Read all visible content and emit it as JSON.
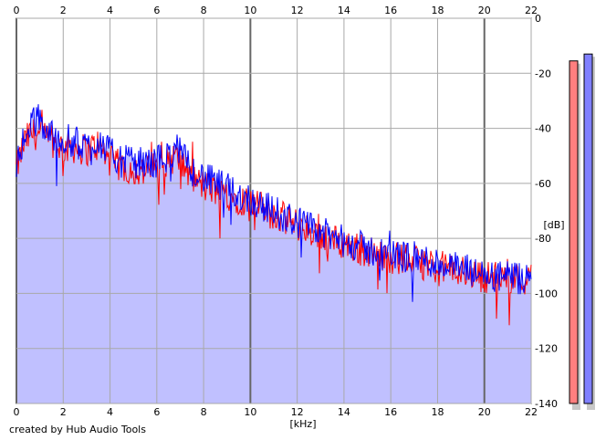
{
  "chart_data": {
    "type": "area",
    "title": "",
    "xlabel": "[kHz]",
    "ylabel": "[dB]",
    "xlim": [
      0,
      22
    ],
    "ylim": [
      -140,
      0
    ],
    "grid": true,
    "x_ticks": [
      0,
      2,
      4,
      6,
      8,
      10,
      12,
      14,
      16,
      18,
      20,
      22
    ],
    "y_ticks": [
      0,
      -20,
      -40,
      -60,
      -80,
      -100,
      -120,
      -140
    ],
    "series": [
      {
        "color": "#ff0000",
        "x": [
          0,
          0.3,
          0.6,
          0.9,
          1.2,
          1.6,
          2.0,
          2.5,
          3.0,
          3.5,
          4.0,
          4.5,
          5.0,
          5.5,
          6.0,
          6.5,
          6.8,
          7.5,
          8.0,
          9.0,
          10.0,
          11.0,
          12.0,
          13.0,
          14.0,
          15.0,
          16.0,
          17.0,
          18.0,
          19.0,
          20.0,
          21.0,
          22.0
        ],
        "values": [
          -55,
          -46,
          -42,
          -42,
          -44,
          -45,
          -47,
          -47,
          -48,
          -46,
          -52,
          -54,
          -55,
          -56,
          -54,
          -52,
          -50,
          -58,
          -61,
          -64,
          -67,
          -71,
          -75,
          -79,
          -82,
          -85,
          -87,
          -88,
          -90,
          -92,
          -94,
          -94,
          -95
        ]
      },
      {
        "color": "#0000ff",
        "x": [
          0,
          0.3,
          0.6,
          0.9,
          1.2,
          1.6,
          2.0,
          2.5,
          3.0,
          3.5,
          4.0,
          4.5,
          5.0,
          5.5,
          6.0,
          6.5,
          6.8,
          7.5,
          8.0,
          9.0,
          10.0,
          11.0,
          12.0,
          13.0,
          14.0,
          15.0,
          16.0,
          17.0,
          18.0,
          19.0,
          20.0,
          21.0,
          22.0
        ],
        "values": [
          -53,
          -44,
          -40,
          -36,
          -40,
          -43,
          -44,
          -45,
          -47,
          -44,
          -49,
          -52,
          -52,
          -53,
          -52,
          -50,
          -47,
          -55,
          -58,
          -62,
          -66,
          -70,
          -74,
          -78,
          -81,
          -84,
          -86,
          -87,
          -89,
          -91,
          -94,
          -94,
          -96
        ]
      }
    ],
    "fill_color": "#c0c0ff",
    "level_meters": [
      {
        "color": "#ff7f7f",
        "level_db": -15.5
      },
      {
        "color": "#8080ff",
        "level_db": -13
      }
    ]
  },
  "footer": {
    "credit": "created by Hub Audio Tools"
  }
}
